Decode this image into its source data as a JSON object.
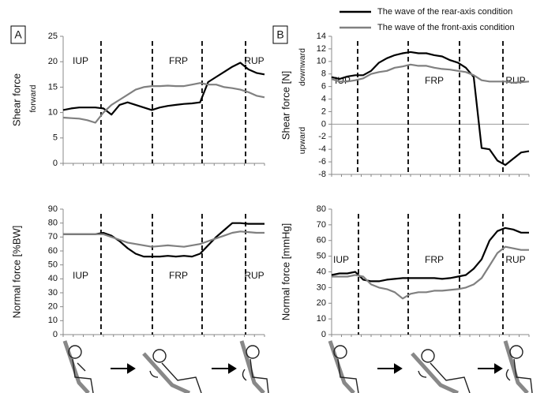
{
  "chart_data": [
    {
      "type": "line",
      "panel": "A",
      "ylabel": "Shear force",
      "ylabel_sub": [
        "forward"
      ],
      "ylim": [
        0,
        25
      ],
      "yticks": [
        0,
        5,
        10,
        15,
        20,
        25
      ],
      "phases": [
        "IUP",
        "FRP",
        "RUP"
      ],
      "series": [
        {
          "color": "#000000",
          "values": [
            10.5,
            10.8,
            11,
            11,
            11,
            10.8,
            9.6,
            11.5,
            12,
            11.5,
            11,
            10.5,
            11,
            11.3,
            11.5,
            11.7,
            11.8,
            12,
            16,
            17,
            18,
            19,
            19.8,
            18.5,
            17.8,
            17.5
          ]
        },
        {
          "color": "#808080",
          "values": [
            9,
            8.9,
            8.8,
            8.5,
            8,
            10,
            11.5,
            12.5,
            13.5,
            14.5,
            15,
            15.2,
            15.2,
            15.3,
            15.2,
            15.2,
            15.5,
            15.8,
            15.5,
            15.5,
            15,
            14.8,
            14.5,
            14,
            13.3,
            13
          ]
        }
      ]
    },
    {
      "type": "line",
      "panel": "B",
      "ylabel": "Shear force [N]",
      "ylabel_sub": [
        "downward",
        "upward"
      ],
      "ylim": [
        -8,
        14
      ],
      "yticks": [
        -8,
        -6,
        -4,
        -2,
        0,
        2,
        4,
        6,
        8,
        10,
        12,
        14
      ],
      "zero_line": true,
      "phases": [
        "IUP",
        "FRP",
        "RUP"
      ],
      "series": [
        {
          "name": "The wave of the rear-axis condition",
          "color": "#000000",
          "values": [
            7.5,
            7.2,
            7.6,
            7.8,
            7.8,
            8.5,
            9.8,
            10.5,
            11,
            11.3,
            11.5,
            11.3,
            11.3,
            11,
            10.8,
            10.2,
            9.8,
            9,
            7.5,
            -3.8,
            -4,
            -5.8,
            -6.5,
            -5.5,
            -4.5,
            -4.3
          ]
        },
        {
          "name": "The wave of the front-axis condition",
          "color": "#808080",
          "values": [
            7.2,
            6.8,
            6.8,
            7,
            7.3,
            8,
            8.3,
            8.5,
            9,
            9.2,
            9.5,
            9.3,
            9.3,
            9,
            8.8,
            8.7,
            8.5,
            8.3,
            7.8,
            7,
            6.8,
            6.8,
            6.8,
            6.6,
            6.7,
            6.8
          ]
        }
      ]
    },
    {
      "type": "line",
      "ylabel": "Normal force [%BW]",
      "ylim": [
        0,
        90
      ],
      "yticks": [
        0,
        10,
        20,
        30,
        40,
        50,
        60,
        70,
        80,
        90
      ],
      "phases": [
        "IUP",
        "FRP",
        "RUP"
      ],
      "series": [
        {
          "color": "#000000",
          "values": [
            72,
            72,
            72,
            72,
            72,
            73,
            71,
            67,
            62,
            58,
            56,
            56,
            56,
            56.5,
            56,
            56.5,
            56,
            58,
            64,
            70,
            75,
            80,
            80,
            79.5,
            79.5,
            79.5
          ]
        },
        {
          "color": "#808080",
          "values": [
            72,
            72,
            72,
            72,
            72,
            72,
            70,
            68,
            66,
            65,
            64,
            63,
            63.5,
            64,
            63.5,
            63,
            64,
            65,
            67,
            69,
            71,
            73,
            74,
            73.5,
            73,
            73
          ]
        }
      ]
    },
    {
      "type": "line",
      "ylabel": "Normal force [mmHg]",
      "ylim": [
        0,
        80
      ],
      "yticks": [
        0,
        10,
        20,
        30,
        40,
        50,
        60,
        70,
        80
      ],
      "phases": [
        "IUP",
        "FRP",
        "RUP"
      ],
      "series": [
        {
          "color": "#000000",
          "values": [
            38,
            39,
            39,
            40,
            35,
            34,
            34,
            35,
            35.5,
            36,
            36,
            36,
            36,
            36,
            35.5,
            36,
            37,
            38,
            42,
            48,
            60,
            66,
            68,
            67,
            65,
            65
          ]
        },
        {
          "color": "#808080",
          "values": [
            37,
            37,
            37,
            38,
            37,
            32,
            30,
            29,
            27,
            23,
            26,
            27,
            27,
            28,
            28,
            28.5,
            29,
            30,
            32,
            36,
            44,
            52,
            56,
            55,
            54,
            54
          ]
        }
      ]
    }
  ]
}
